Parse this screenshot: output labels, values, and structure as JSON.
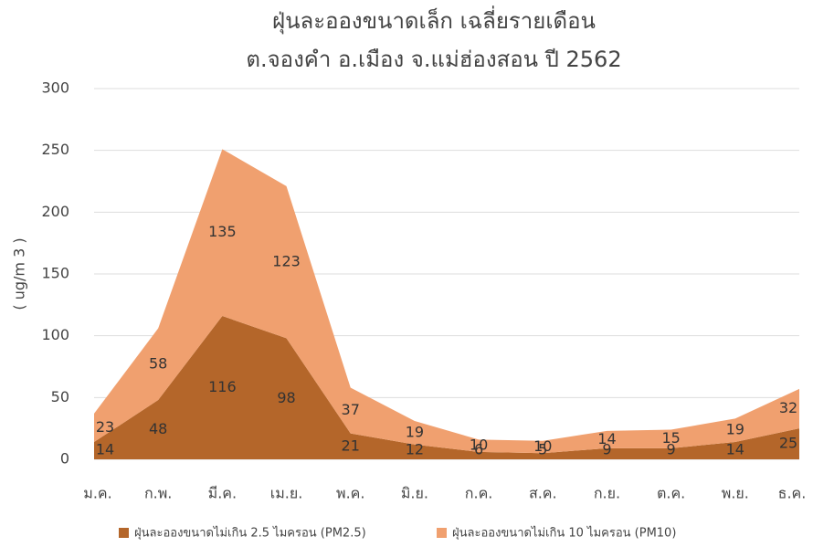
{
  "chart_data": {
    "type": "area",
    "stacked": true,
    "title": [
      "ฝุ่นละอองขนาดเล็ก เฉลี่ยรายเดือน",
      "ต.จองคำ อ.เมือง จ.แม่ฮ่องสอน ปี 2562"
    ],
    "y_label": "( ug/m 3 )",
    "categories": [
      "ม.ค.",
      "ก.พ.",
      "มี.ค.",
      "เม.ย.",
      "พ.ค.",
      "มิ.ย.",
      "ก.ค.",
      "ส.ค.",
      "ก.ย.",
      "ต.ค.",
      "พ.ย.",
      "ธ.ค."
    ],
    "series": [
      {
        "name": "ฝุ่นละอองขนาดไม่เกิน 2.5 ไมครอน (PM2.5)",
        "color": "#b4662a",
        "values": [
          14,
          48,
          116,
          98,
          21,
          12,
          6,
          5,
          9,
          9,
          14,
          25
        ]
      },
      {
        "name": "ฝุ่นละอองขนาดไม่เกิน 10 ไมครอน (PM10)",
        "color": "#f0a06f",
        "values": [
          23,
          58,
          135,
          123,
          37,
          19,
          10,
          10,
          14,
          15,
          19,
          32
        ]
      }
    ],
    "ylim": [
      0,
      300
    ],
    "yticks": [
      0,
      50,
      100,
      150,
      200,
      250,
      300
    ],
    "grid": true,
    "legend": "bottom"
  }
}
